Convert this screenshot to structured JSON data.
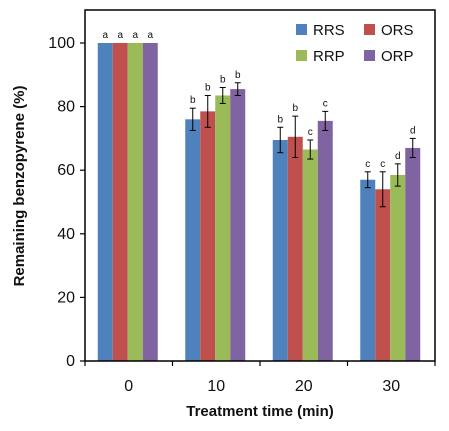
{
  "chart_data": {
    "type": "bar",
    "xlabel": "Treatment time (min)",
    "ylabel": "Remaining benzopyrene (%)",
    "ylim": [
      0,
      110
    ],
    "yticks": [
      "0",
      "20",
      "40",
      "60",
      "80",
      "100"
    ],
    "categories": [
      "0",
      "10",
      "20",
      "30"
    ],
    "legend_placement": "top-right",
    "grid": false,
    "series": [
      {
        "name": "RRS",
        "color": "#4f81bd",
        "values": [
          100,
          76,
          69.5,
          57
        ],
        "errors": [
          0,
          3.5,
          4,
          2.5
        ],
        "labels": [
          "a",
          "b",
          "b",
          "c"
        ]
      },
      {
        "name": "ORS",
        "color": "#c0504d",
        "values": [
          100,
          78.5,
          70.5,
          54
        ],
        "errors": [
          0,
          5,
          6.5,
          5.5
        ],
        "labels": [
          "a",
          "b",
          "b",
          "c"
        ]
      },
      {
        "name": "RRP",
        "color": "#9bbb59",
        "values": [
          100,
          83.5,
          66.5,
          58.5
        ],
        "errors": [
          0,
          2.5,
          3,
          3.5
        ],
        "labels": [
          "a",
          "b",
          "c",
          "d"
        ]
      },
      {
        "name": "ORP",
        "color": "#8064a2",
        "values": [
          100,
          85.5,
          75.5,
          67
        ],
        "errors": [
          0,
          2,
          3,
          3
        ],
        "labels": [
          "a",
          "b",
          "c",
          "d"
        ]
      }
    ]
  }
}
